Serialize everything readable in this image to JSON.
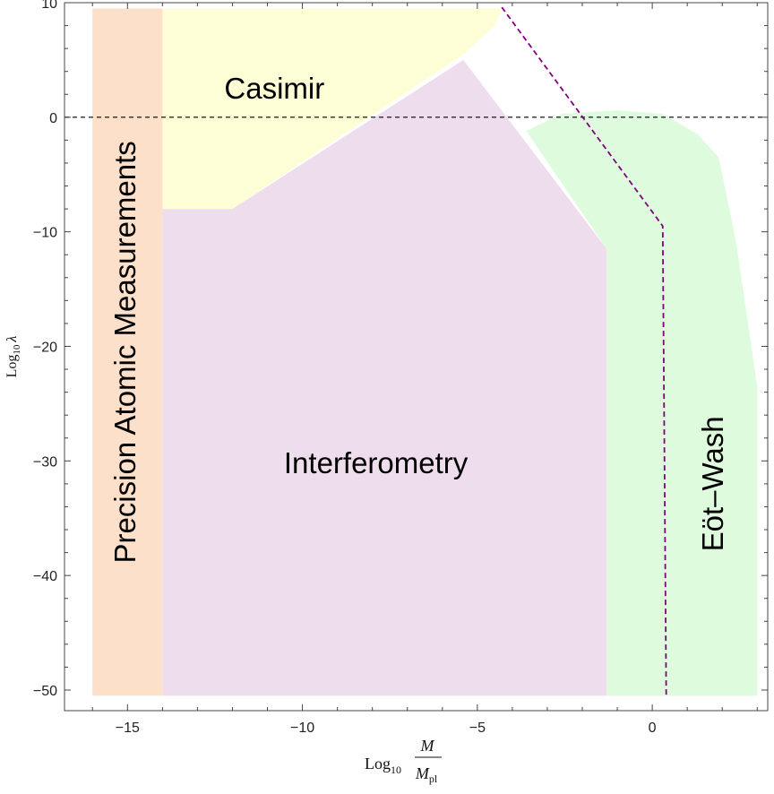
{
  "chart_data": {
    "type": "area",
    "xlim": [
      -16.8,
      3.3
    ],
    "ylim": [
      -51.8,
      10.0
    ],
    "xticks": [
      -15,
      -10,
      -5,
      0
    ],
    "xtick_labels": [
      "−15",
      "−10",
      "−5",
      "0"
    ],
    "yticks": [
      10,
      0,
      -10,
      -20,
      -30,
      -40,
      -50
    ],
    "ytick_labels": [
      "10",
      "0",
      "−10",
      "−20",
      "−30",
      "−40",
      "−50"
    ],
    "xlabel": {
      "prefix": "Log",
      "sub": "10",
      "numerator": "M",
      "denominator": "M",
      "denominator_sub": "pl"
    },
    "ylabel": {
      "prefix": "Log",
      "sub": "10",
      "symbol": "λ"
    },
    "grid": false,
    "regions": [
      {
        "name": "Precision Atomic Measurements",
        "color": "#fde0c9",
        "points": [
          [
            -16.0,
            -50.5
          ],
          [
            -14.0,
            -50.5
          ],
          [
            -14.0,
            9.5
          ],
          [
            -16.0,
            9.5
          ]
        ]
      },
      {
        "name": "Casimir",
        "color": "#fdfdd6",
        "points": [
          [
            -14.0,
            9.5
          ],
          [
            -4.3,
            9.5
          ],
          [
            -4.5,
            8.0
          ],
          [
            -5.4,
            5.5
          ],
          [
            -12.0,
            -8.0
          ],
          [
            -14.0,
            -8.0
          ]
        ]
      },
      {
        "name": "Interferometry",
        "color": "#eedeed",
        "points": [
          [
            -14.0,
            -8.0
          ],
          [
            -12.0,
            -8.0
          ],
          [
            -5.4,
            5.0
          ],
          [
            -1.3,
            -11.5
          ],
          [
            -1.3,
            -50.5
          ],
          [
            -14.0,
            -50.5
          ]
        ]
      },
      {
        "name": "Eöt–Wash",
        "color": "#defbdd",
        "points": [
          [
            -3.6,
            -1.2
          ],
          [
            -2.6,
            0.3
          ],
          [
            -1.0,
            0.6
          ],
          [
            0.3,
            0.3
          ],
          [
            1.3,
            -1.5
          ],
          [
            1.9,
            -3.5
          ],
          [
            2.4,
            -11.0
          ],
          [
            3.0,
            -23.5
          ],
          [
            3.0,
            -50.5
          ],
          [
            -1.3,
            -50.5
          ],
          [
            -1.3,
            -11.5
          ]
        ]
      }
    ],
    "lines": [
      {
        "kind": "reference",
        "color": "#000000",
        "dash": "5,4",
        "points": [
          [
            -16.8,
            0
          ],
          [
            3.2,
            0
          ]
        ]
      },
      {
        "kind": "bound",
        "color": "#800080",
        "dash": "6,4",
        "points": [
          [
            -4.3,
            9.6
          ],
          [
            0.3,
            -9.5
          ],
          [
            0.4,
            -50.6
          ]
        ]
      }
    ],
    "labels": [
      {
        "text": "Casimir",
        "x": -10.8,
        "y": 2.3,
        "rotate": 0
      },
      {
        "text": "Interferometry",
        "x": -7.9,
        "y": -30.4,
        "rotate": 0
      },
      {
        "text": "Precision Atomic Measurements",
        "x": -15.0,
        "y": -20.5,
        "rotate": -90
      },
      {
        "text": "Eöt–Wash",
        "x": 1.8,
        "y": -32.0,
        "rotate": -90
      }
    ]
  }
}
